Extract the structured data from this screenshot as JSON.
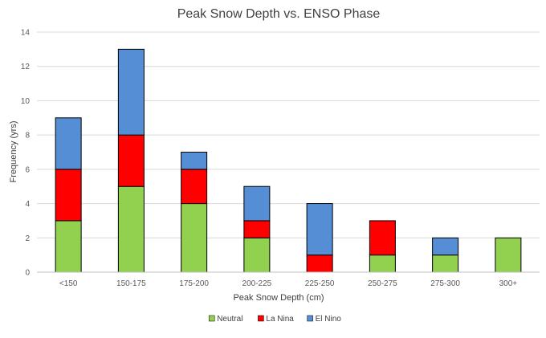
{
  "chart_data": {
    "type": "bar",
    "stacked": true,
    "title": "Peak Snow Depth vs. ENSO Phase",
    "xlabel": "Peak Snow Depth (cm)",
    "ylabel": "Frequency (yrs)",
    "ylim": [
      0,
      14
    ],
    "yticks": [
      "0",
      "2",
      "4",
      "6",
      "8",
      "10",
      "12",
      "14"
    ],
    "grid": true,
    "legend_position": "bottom",
    "categories": [
      "<150",
      "150-175",
      "175-200",
      "200-225",
      "225-250",
      "250-275",
      "275-300",
      "300+"
    ],
    "series": [
      {
        "name": "Neutral",
        "color": "#92d050",
        "values": [
          3,
          5,
          4,
          2,
          0,
          1,
          1,
          2
        ]
      },
      {
        "name": "La Nina",
        "color": "#ff0000",
        "values": [
          3,
          3,
          2,
          1,
          1,
          2,
          0,
          0
        ]
      },
      {
        "name": "El Nino",
        "color": "#558ed5",
        "values": [
          3,
          5,
          1,
          2,
          3,
          0,
          1,
          0
        ]
      }
    ]
  }
}
